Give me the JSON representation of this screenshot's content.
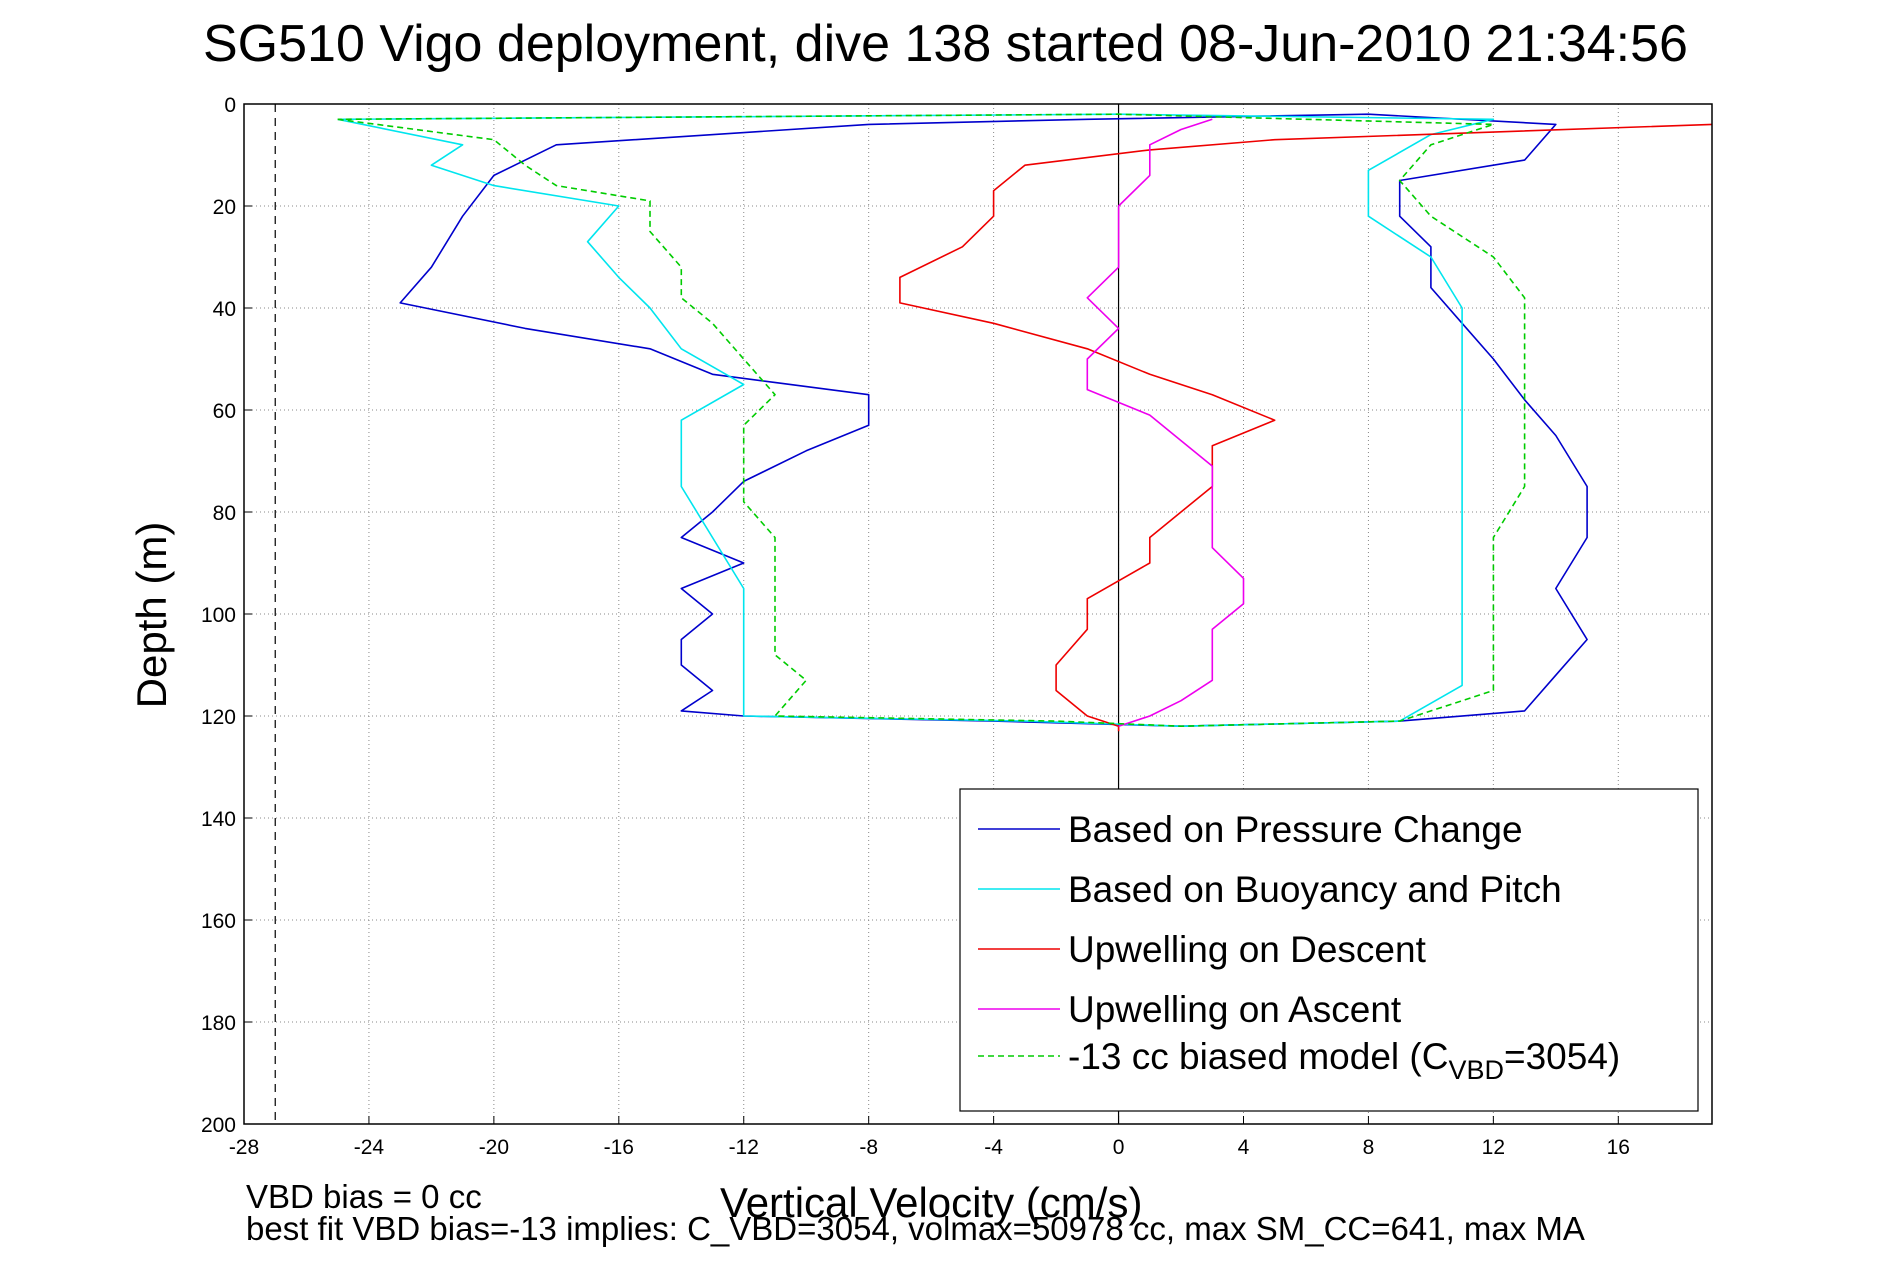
{
  "title": "SG510 Vigo deployment, dive 138 started 08-Jun-2010 21:34:56",
  "notes": {
    "line1": "VBD bias = 0 cc",
    "line2": "best fit VBD bias=-13 implies: C_VBD=3054, volmax=50978 cc, max SM_CC=641, max MA"
  },
  "chart_data": {
    "type": "line",
    "xlabel": "Vertical Velocity (cm/s)",
    "ylabel": "Depth (m)",
    "xlim": [
      -28,
      19
    ],
    "ylim": [
      0,
      200
    ],
    "y_reversed": true,
    "xticks": [
      -28,
      -24,
      -20,
      -16,
      -12,
      -8,
      -4,
      0,
      4,
      8,
      12,
      16
    ],
    "yticks": [
      0,
      20,
      40,
      60,
      80,
      100,
      120,
      140,
      160,
      180,
      200
    ],
    "grid": true,
    "legend_position": "bottom-right",
    "reference_lines": [
      {
        "axis": "x",
        "value": 0,
        "style": "solid"
      },
      {
        "axis": "x",
        "value": -27,
        "style": "dashed"
      }
    ],
    "series": [
      {
        "name": "Based on Pressure Change",
        "color": "#0000cc",
        "style": "solid",
        "points": [
          [
            -8,
            4
          ],
          [
            -18,
            8
          ],
          [
            -20,
            14
          ],
          [
            -21,
            22
          ],
          [
            -22,
            32
          ],
          [
            -23,
            39
          ],
          [
            -19,
            44
          ],
          [
            -15,
            48
          ],
          [
            -13,
            53
          ],
          [
            -8,
            57
          ],
          [
            -8,
            63
          ],
          [
            -10,
            68
          ],
          [
            -12,
            74
          ],
          [
            -13,
            80
          ],
          [
            -14,
            85
          ],
          [
            -12,
            90
          ],
          [
            -14,
            95
          ],
          [
            -13,
            100
          ],
          [
            -14,
            105
          ],
          [
            -14,
            110
          ],
          [
            -13,
            115
          ],
          [
            -14,
            119
          ],
          [
            -12,
            120
          ],
          [
            -4,
            121
          ],
          [
            2,
            122
          ],
          [
            9,
            121
          ],
          [
            13,
            119
          ],
          [
            14,
            112
          ],
          [
            15,
            105
          ],
          [
            14,
            95
          ],
          [
            15,
            85
          ],
          [
            15,
            75
          ],
          [
            14,
            65
          ],
          [
            13,
            58
          ],
          [
            12,
            50
          ],
          [
            11,
            43
          ],
          [
            10,
            36
          ],
          [
            10,
            28
          ],
          [
            9,
            22
          ],
          [
            9,
            15
          ],
          [
            13,
            11
          ],
          [
            14,
            4
          ],
          [
            8,
            2
          ],
          [
            -1,
            3
          ],
          [
            -8,
            4
          ]
        ]
      },
      {
        "name": "Based on Buoyancy and Pitch",
        "color": "#00e5ee",
        "style": "solid",
        "points": [
          [
            -25,
            3
          ],
          [
            -21,
            8
          ],
          [
            -22,
            12
          ],
          [
            -20,
            16
          ],
          [
            -16,
            20
          ],
          [
            -17,
            27
          ],
          [
            -16,
            34
          ],
          [
            -15,
            40
          ],
          [
            -14,
            48
          ],
          [
            -12,
            55
          ],
          [
            -14,
            62
          ],
          [
            -14,
            75
          ],
          [
            -13,
            85
          ],
          [
            -12,
            95
          ],
          [
            -12,
            110
          ],
          [
            -12,
            120
          ],
          [
            -3,
            121
          ],
          [
            2,
            122
          ],
          [
            9,
            121
          ],
          [
            11,
            114
          ],
          [
            11,
            100
          ],
          [
            11,
            85
          ],
          [
            11,
            75
          ],
          [
            11,
            62
          ],
          [
            11,
            50
          ],
          [
            11,
            40
          ],
          [
            10,
            30
          ],
          [
            8,
            22
          ],
          [
            8,
            13
          ],
          [
            10,
            6
          ],
          [
            12,
            3
          ],
          [
            0,
            2
          ],
          [
            -25,
            3
          ]
        ]
      },
      {
        "name": "Upwelling on Descent",
        "color": "#ee0000",
        "style": "solid",
        "points": [
          [
            19,
            4
          ],
          [
            5,
            7
          ],
          [
            1,
            9
          ],
          [
            -3,
            12
          ],
          [
            -4,
            17
          ],
          [
            -4,
            22
          ],
          [
            -5,
            28
          ],
          [
            -7,
            34
          ],
          [
            -7,
            39
          ],
          [
            -4,
            43
          ],
          [
            -1,
            48
          ],
          [
            1,
            53
          ],
          [
            3,
            57
          ],
          [
            5,
            62
          ],
          [
            3,
            67
          ],
          [
            3,
            75
          ],
          [
            2,
            80
          ],
          [
            1,
            85
          ],
          [
            1,
            90
          ],
          [
            -1,
            97
          ],
          [
            -1,
            103
          ],
          [
            -2,
            110
          ],
          [
            -2,
            115
          ],
          [
            -1,
            120
          ],
          [
            0,
            122
          ],
          [
            0,
            123
          ]
        ]
      },
      {
        "name": "Upwelling on Ascent",
        "color": "#ee00ee",
        "style": "solid",
        "points": [
          [
            0,
            122
          ],
          [
            1,
            120
          ],
          [
            2,
            117
          ],
          [
            3,
            113
          ],
          [
            3,
            108
          ],
          [
            3,
            103
          ],
          [
            4,
            98
          ],
          [
            4,
            93
          ],
          [
            3,
            87
          ],
          [
            3,
            81
          ],
          [
            3,
            76
          ],
          [
            3,
            71
          ],
          [
            2,
            66
          ],
          [
            1,
            61
          ],
          [
            -1,
            56
          ],
          [
            -1,
            50
          ],
          [
            0,
            44
          ],
          [
            -1,
            38
          ],
          [
            0,
            32
          ],
          [
            0,
            26
          ],
          [
            0,
            20
          ],
          [
            1,
            14
          ],
          [
            1,
            8
          ],
          [
            2,
            5
          ],
          [
            3,
            3
          ]
        ]
      },
      {
        "name": "-13 cc biased model (C_VBD=3054)",
        "color": "#00cc00",
        "style": "dashed",
        "points": [
          [
            -25,
            3
          ],
          [
            -20,
            7
          ],
          [
            -19,
            12
          ],
          [
            -18,
            16
          ],
          [
            -15,
            19
          ],
          [
            -15,
            25
          ],
          [
            -14,
            32
          ],
          [
            -14,
            38
          ],
          [
            -13,
            43
          ],
          [
            -12,
            50
          ],
          [
            -11,
            57
          ],
          [
            -12,
            63
          ],
          [
            -12,
            70
          ],
          [
            -12,
            78
          ],
          [
            -11,
            85
          ],
          [
            -11,
            92
          ],
          [
            -11,
            100
          ],
          [
            -11,
            108
          ],
          [
            -10,
            113
          ],
          [
            -11,
            120
          ],
          [
            -2,
            121
          ],
          [
            2,
            122
          ],
          [
            9,
            121
          ],
          [
            12,
            115
          ],
          [
            12,
            105
          ],
          [
            12,
            95
          ],
          [
            12,
            85
          ],
          [
            13,
            75
          ],
          [
            13,
            65
          ],
          [
            13,
            55
          ],
          [
            13,
            45
          ],
          [
            13,
            38
          ],
          [
            12,
            30
          ],
          [
            10,
            22
          ],
          [
            9,
            15
          ],
          [
            10,
            8
          ],
          [
            12,
            4
          ],
          [
            0,
            2
          ],
          [
            -25,
            3
          ]
        ]
      }
    ]
  }
}
